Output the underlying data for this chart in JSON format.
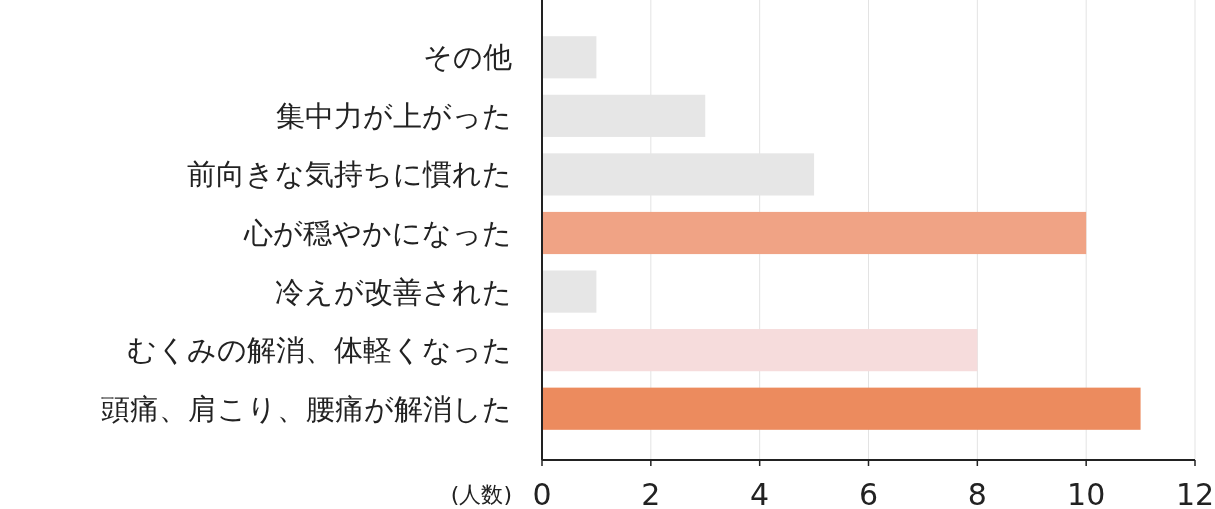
{
  "chart_data": {
    "type": "bar",
    "orientation": "horizontal",
    "xlabel": "(人数)",
    "categories": [
      "その他",
      "集中力が上がった",
      "前向きな気持ちに慣れた",
      "心が穏やかになった",
      "冷えが改善された",
      "むくみの解消、体軽くなった",
      "頭痛、肩こり、腰痛が解消した"
    ],
    "values": [
      1,
      3,
      5,
      10,
      1,
      8,
      11
    ],
    "colors": [
      "#e6e6e6",
      "#e6e6e6",
      "#e6e6e6",
      "#f0a385",
      "#e6e6e6",
      "#f6dcdc",
      "#ec8b5e"
    ],
    "xlim": [
      0,
      12
    ],
    "xticks": [
      0,
      2,
      4,
      6,
      8,
      10,
      12
    ],
    "grid": "x"
  }
}
